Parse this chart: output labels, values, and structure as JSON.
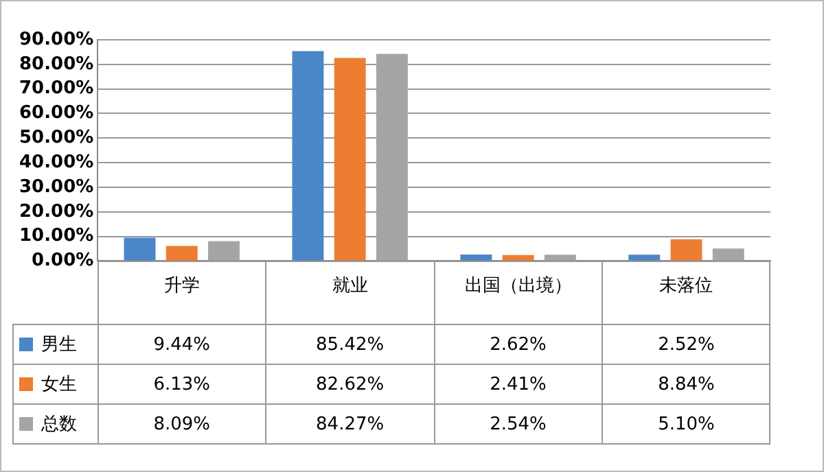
{
  "chart_data": {
    "type": "bar",
    "categories": [
      "升学",
      "就业",
      "出国（出境）",
      "未落位"
    ],
    "series": [
      {
        "name": "男生",
        "color": "#4a86c8",
        "values": [
          9.44,
          85.42,
          2.62,
          2.52
        ],
        "value_labels": [
          "9.44%",
          "85.42%",
          "2.62%",
          "2.52%"
        ]
      },
      {
        "name": "女生",
        "color": "#ed7d31",
        "values": [
          6.13,
          82.62,
          2.41,
          8.84
        ],
        "value_labels": [
          "6.13%",
          "82.62%",
          "2.41%",
          "8.84%"
        ]
      },
      {
        "name": "总数",
        "color": "#a5a5a5",
        "values": [
          8.09,
          84.27,
          2.54,
          5.1
        ],
        "value_labels": [
          "8.09%",
          "84.27%",
          "2.54%",
          "5.10%"
        ]
      }
    ],
    "ylim": [
      0,
      90
    ],
    "yticks": [
      {
        "value": 0,
        "label": "0.00%"
      },
      {
        "value": 10,
        "label": "10.00%"
      },
      {
        "value": 20,
        "label": "20.00%"
      },
      {
        "value": 30,
        "label": "30.00%"
      },
      {
        "value": 40,
        "label": "40.00%"
      },
      {
        "value": 50,
        "label": "50.00%"
      },
      {
        "value": 60,
        "label": "60.00%"
      },
      {
        "value": 70,
        "label": "70.00%"
      },
      {
        "value": 80,
        "label": "80.00%"
      },
      {
        "value": 90,
        "label": "90.00%"
      }
    ],
    "grid": "y",
    "legend": "bottom"
  }
}
